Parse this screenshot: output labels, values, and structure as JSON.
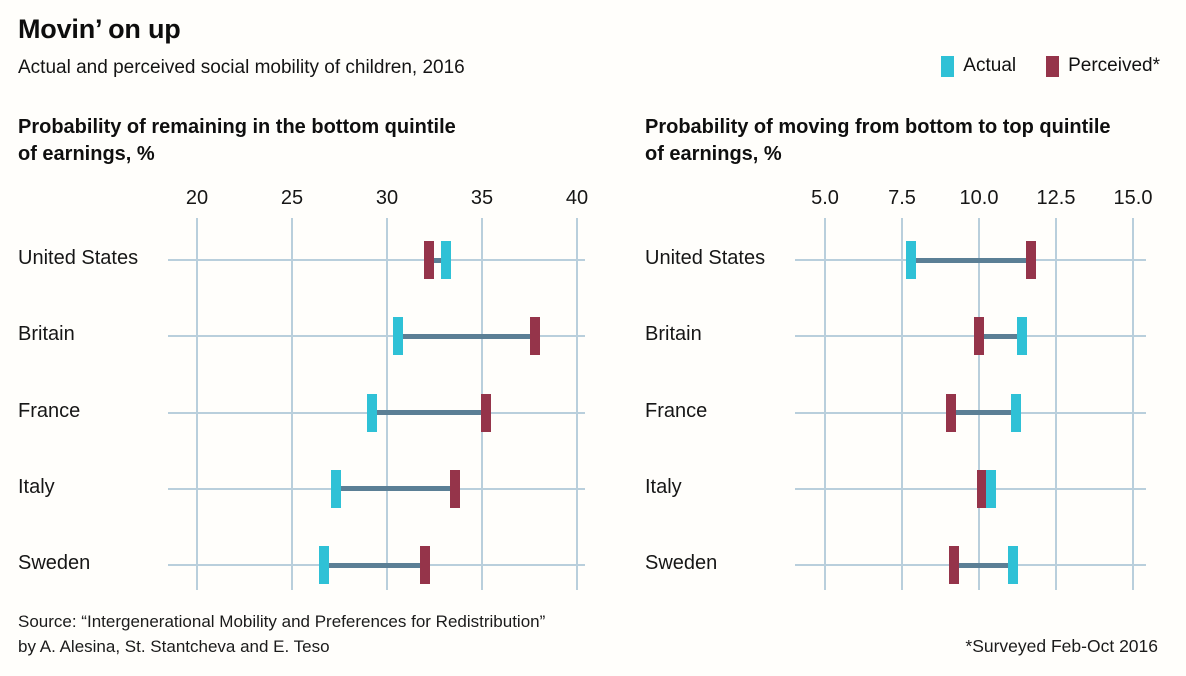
{
  "header": {
    "title": "Movin’ on up",
    "subtitle": "Actual and perceived social mobility of children, 2016",
    "legend": [
      {
        "label": "Actual",
        "color": "#2fc1d6"
      },
      {
        "label": "Perceived*",
        "color": "#95344a"
      }
    ]
  },
  "colors": {
    "actual": "#2fc1d6",
    "perceived": "#95344a",
    "connector": "#5b7f95",
    "gridline": "#b9cfdc",
    "background": "#fffefb"
  },
  "chart_data": [
    {
      "type": "dumbbell",
      "title": "Probability of remaining in the bottom quintile of earnings, %",
      "title_lines": [
        "Probability of remaining in the bottom quintile",
        "of earnings, %"
      ],
      "categories": [
        "United States",
        "Britain",
        "France",
        "Italy",
        "Sweden"
      ],
      "series": [
        {
          "name": "Actual",
          "values": [
            33.1,
            30.6,
            29.2,
            27.3,
            26.7
          ]
        },
        {
          "name": "Perceived",
          "values": [
            32.2,
            37.8,
            35.2,
            33.6,
            32.0
          ]
        }
      ],
      "xlim": [
        20,
        40
      ],
      "xticks": [
        20,
        25,
        30,
        35,
        40
      ],
      "xtick_labels": [
        "20",
        "25",
        "30",
        "35",
        "40"
      ],
      "grid": true,
      "legend_position": "top-right"
    },
    {
      "type": "dumbbell",
      "title": "Probability of moving from bottom to top quintile of earnings, %",
      "title_lines": [
        "Probability of moving from bottom to top quintile",
        "of earnings, %"
      ],
      "categories": [
        "United States",
        "Britain",
        "France",
        "Italy",
        "Sweden"
      ],
      "series": [
        {
          "name": "Actual",
          "values": [
            7.8,
            11.4,
            11.2,
            10.4,
            11.1
          ]
        },
        {
          "name": "Perceived",
          "values": [
            11.7,
            10.0,
            9.1,
            10.1,
            9.2
          ]
        }
      ],
      "xlim": [
        5,
        15
      ],
      "xticks": [
        5.0,
        7.5,
        10.0,
        12.5,
        15.0
      ],
      "xtick_labels": [
        "5.0",
        "7.5",
        "10.0",
        "12.5",
        "15.0"
      ],
      "grid": true,
      "legend_position": "top-right"
    }
  ],
  "footer": {
    "source_line1": "Source: “Intergenerational Mobility and Preferences for Redistribution”",
    "source_line2": "by A. Alesina, St. Stantcheva and E. Teso",
    "footnote": "*Surveyed Feb-Oct 2016"
  }
}
